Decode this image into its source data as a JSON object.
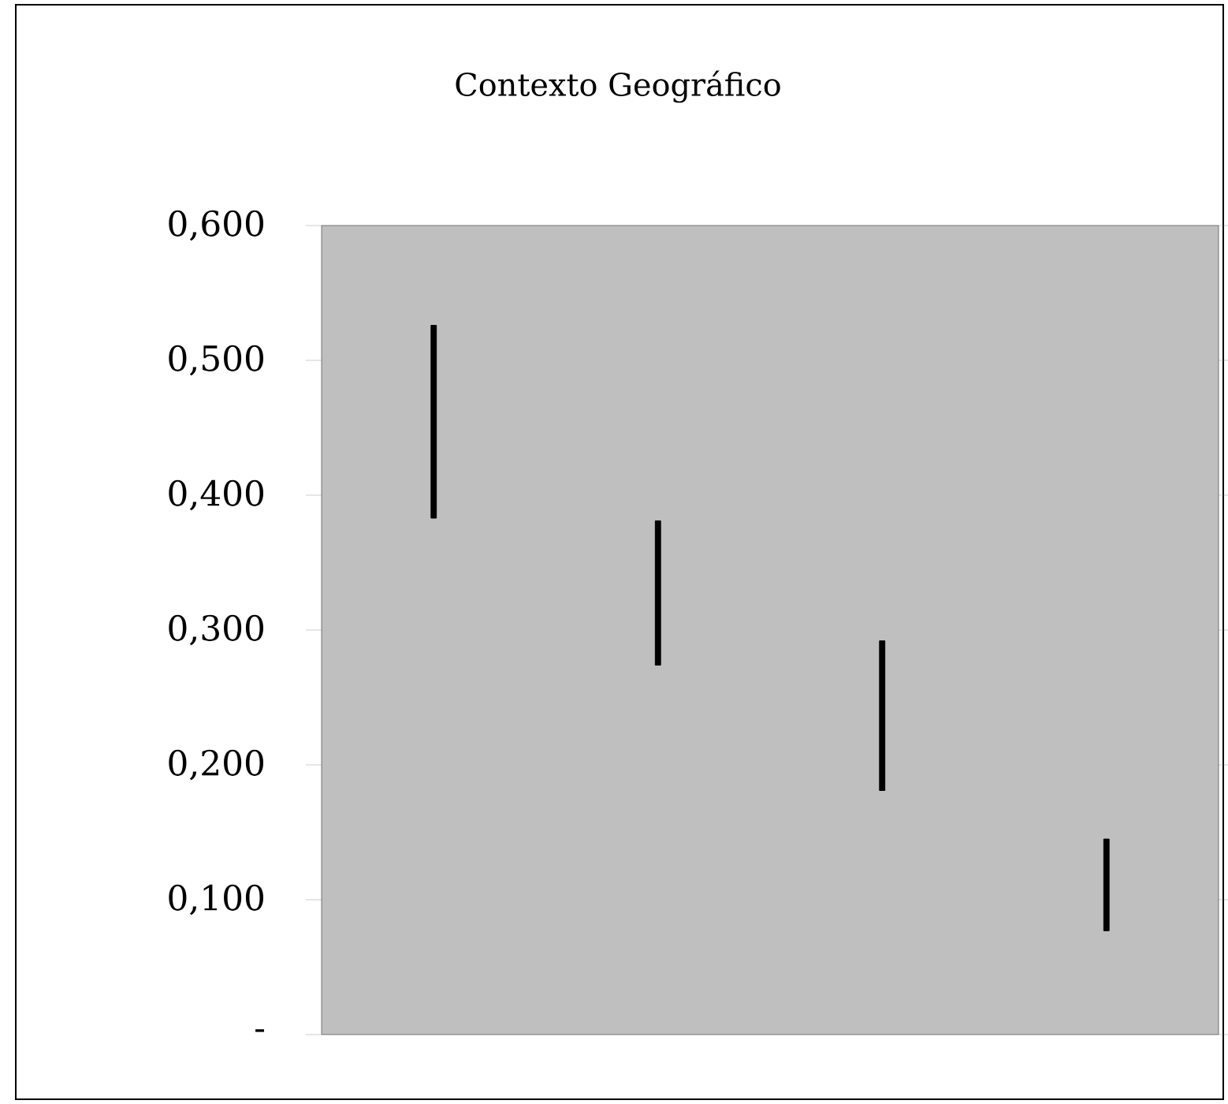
{
  "chart_data": {
    "type": "bar",
    "title": "Contexto Geográfico",
    "categories": [
      null,
      null,
      null,
      null
    ],
    "base": [
      0.383,
      0.274,
      0.181,
      0.077
    ],
    "values": [
      0.143,
      0.107,
      0.111,
      0.068
    ],
    "color": "#000000",
    "ylim": [
      0,
      0.6
    ],
    "yticks": [
      {
        "value": 0,
        "label": "-"
      },
      {
        "value": 0.1,
        "label": "0,100"
      },
      {
        "value": 0.2,
        "label": "0,200"
      },
      {
        "value": 0.3,
        "label": "0,300"
      },
      {
        "value": 0.4,
        "label": "0,400"
      },
      {
        "value": 0.5,
        "label": "0,500"
      },
      {
        "value": 0.6,
        "label": "0,600"
      }
    ],
    "tick_labels": "y"
  }
}
